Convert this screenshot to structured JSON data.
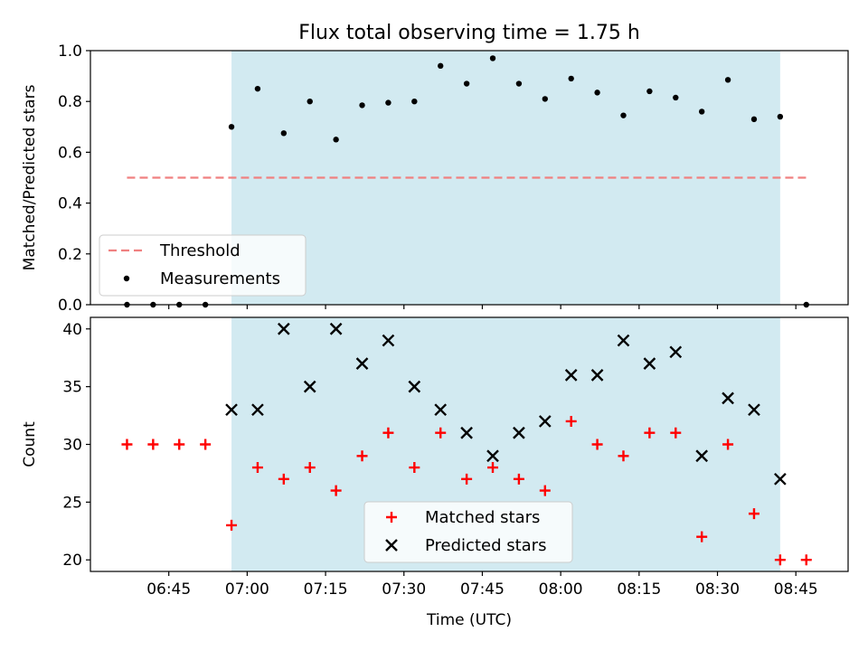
{
  "chart_data": [
    {
      "type": "scatter",
      "title": "Flux total observing time = 1.75 h",
      "xlabel": "",
      "ylabel": "Matched/Predicted stars",
      "xlim": [
        "06:30",
        "08:55"
      ],
      "ylim": [
        0,
        1.0
      ],
      "yticks": [
        "0.0",
        "0.2",
        "0.4",
        "0.6",
        "0.8",
        "1.0"
      ],
      "shaded_span": {
        "start": "06:57",
        "end": "08:42",
        "color": "#add8e6"
      },
      "legend_position": "lower-left",
      "series": [
        {
          "name": "Threshold",
          "style": "dashed-line",
          "color": "#f08080",
          "x": [
            "06:37",
            "08:47"
          ],
          "y": [
            0.5,
            0.5
          ]
        },
        {
          "name": "Measurements",
          "style": "dot",
          "color": "#000000",
          "x": [
            "06:37",
            "06:42",
            "06:47",
            "06:52",
            "06:57",
            "07:02",
            "07:07",
            "07:12",
            "07:17",
            "07:22",
            "07:27",
            "07:32",
            "07:37",
            "07:42",
            "07:47",
            "07:52",
            "07:57",
            "08:02",
            "08:07",
            "08:12",
            "08:17",
            "08:22",
            "08:27",
            "08:32",
            "08:37",
            "08:42",
            "08:47"
          ],
          "y": [
            0.0,
            0.0,
            0.0,
            0.0,
            0.7,
            0.85,
            0.675,
            0.8,
            0.65,
            0.785,
            0.795,
            0.8,
            0.94,
            0.87,
            0.97,
            0.87,
            0.81,
            0.89,
            0.835,
            0.745,
            0.84,
            0.815,
            0.76,
            0.885,
            0.73,
            0.74,
            0.0
          ]
        }
      ]
    },
    {
      "type": "scatter",
      "title": "",
      "xlabel": "Time (UTC)",
      "ylabel": "Count",
      "xlim": [
        "06:30",
        "08:55"
      ],
      "ylim": [
        19,
        41
      ],
      "xticks": [
        "06:45",
        "07:00",
        "07:15",
        "07:30",
        "07:45",
        "08:00",
        "08:15",
        "08:30",
        "08:45"
      ],
      "yticks": [
        "20",
        "25",
        "30",
        "35",
        "40"
      ],
      "shaded_span": {
        "start": "06:57",
        "end": "08:42",
        "color": "#add8e6"
      },
      "legend_position": "lower-center",
      "series": [
        {
          "name": "Matched stars",
          "style": "plus",
          "color": "#ff0000",
          "x": [
            "06:37",
            "06:42",
            "06:47",
            "06:52",
            "06:57",
            "07:02",
            "07:07",
            "07:12",
            "07:17",
            "07:22",
            "07:27",
            "07:32",
            "07:37",
            "07:42",
            "07:47",
            "07:52",
            "07:57",
            "08:02",
            "08:07",
            "08:12",
            "08:17",
            "08:22",
            "08:27",
            "08:32",
            "08:37",
            "08:42",
            "08:47"
          ],
          "y": [
            30,
            30,
            30,
            30,
            23,
            28,
            27,
            28,
            26,
            29,
            31,
            28,
            31,
            27,
            28,
            27,
            26,
            32,
            30,
            29,
            31,
            31,
            22,
            30,
            24,
            20,
            20
          ]
        },
        {
          "name": "Predicted stars",
          "style": "x",
          "color": "#000000",
          "x": [
            "06:57",
            "07:02",
            "07:07",
            "07:12",
            "07:17",
            "07:22",
            "07:27",
            "07:32",
            "07:37",
            "07:42",
            "07:47",
            "07:52",
            "07:57",
            "08:02",
            "08:07",
            "08:12",
            "08:17",
            "08:22",
            "08:27",
            "08:32",
            "08:37",
            "08:42"
          ],
          "y": [
            33,
            33,
            40,
            35,
            40,
            37,
            39,
            35,
            33,
            31,
            29,
            31,
            32,
            36,
            36,
            39,
            37,
            38,
            29,
            34,
            33,
            27
          ]
        }
      ]
    }
  ]
}
